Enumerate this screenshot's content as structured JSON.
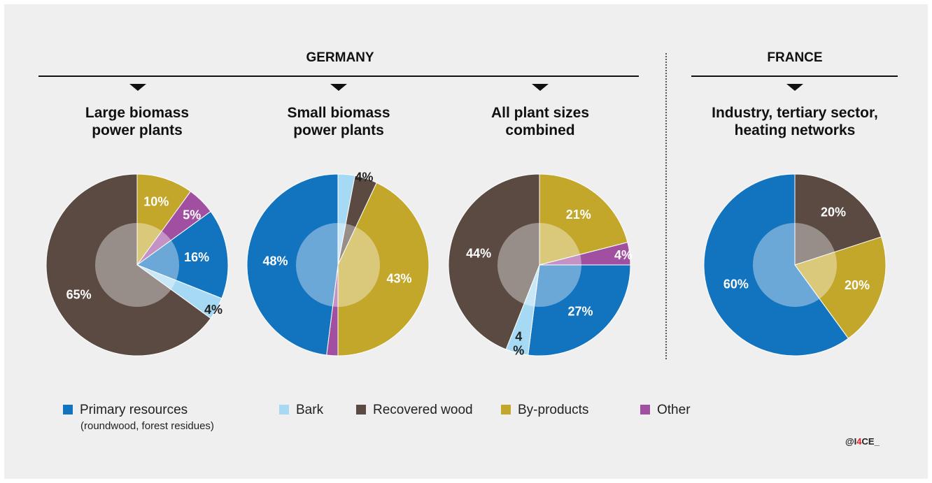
{
  "sections": {
    "germany": "GERMANY",
    "france": "FRANCE"
  },
  "legend": {
    "primary": "Primary resources",
    "primary_note": "(roundwood, forest residues)",
    "bark": "Bark",
    "recovered": "Recovered wood",
    "byproducts": "By-products",
    "other": "Other"
  },
  "credit": {
    "prefix": "@I",
    "accent": "4",
    "suffix": "CE_"
  },
  "colors": {
    "primary": "#1273bf",
    "bark": "#a6d9f3",
    "recovered": "#5a4a41",
    "byproducts": "#c3a72b",
    "other": "#a150a1",
    "background": "#efeff0"
  },
  "chart_data": [
    {
      "type": "pie",
      "title": "Large biomass power plants",
      "title_lines": [
        "Large biomass",
        "power plants"
      ],
      "slices": [
        {
          "category": "byproducts",
          "value": 10,
          "label": "10%"
        },
        {
          "category": "other",
          "value": 5,
          "label": "5%"
        },
        {
          "category": "primary",
          "value": 16,
          "label": "16%"
        },
        {
          "category": "bark",
          "value": 4,
          "label": "4%"
        },
        {
          "category": "recovered",
          "value": 65,
          "label": "65%"
        }
      ]
    },
    {
      "type": "pie",
      "title": "Small biomass power plants",
      "title_lines": [
        "Small biomass",
        "power plants"
      ],
      "slices": [
        {
          "category": "bark",
          "value": 3,
          "label": ""
        },
        {
          "category": "recovered",
          "value": 4,
          "label": "4%"
        },
        {
          "category": "byproducts",
          "value": 43,
          "label": "43%"
        },
        {
          "category": "other",
          "value": 2,
          "label": ""
        },
        {
          "category": "primary",
          "value": 48,
          "label": "48%"
        }
      ]
    },
    {
      "type": "pie",
      "title": "All plant sizes combined",
      "title_lines": [
        "All plant sizes",
        "combined"
      ],
      "slices": [
        {
          "category": "byproducts",
          "value": 21,
          "label": "21%"
        },
        {
          "category": "other",
          "value": 4,
          "label": "4%"
        },
        {
          "category": "primary",
          "value": 27,
          "label": "27%"
        },
        {
          "category": "bark",
          "value": 4,
          "label": "4 %"
        },
        {
          "category": "recovered",
          "value": 44,
          "label": "44%"
        }
      ]
    },
    {
      "type": "pie",
      "title": "Industry, tertiary sector, heating networks",
      "title_lines": [
        "Industry, tertiary sector,",
        "heating networks"
      ],
      "slices": [
        {
          "category": "recovered",
          "value": 20,
          "label": "20%"
        },
        {
          "category": "byproducts",
          "value": 20,
          "label": "20%"
        },
        {
          "category": "primary",
          "value": 60,
          "label": "60%"
        }
      ]
    }
  ]
}
